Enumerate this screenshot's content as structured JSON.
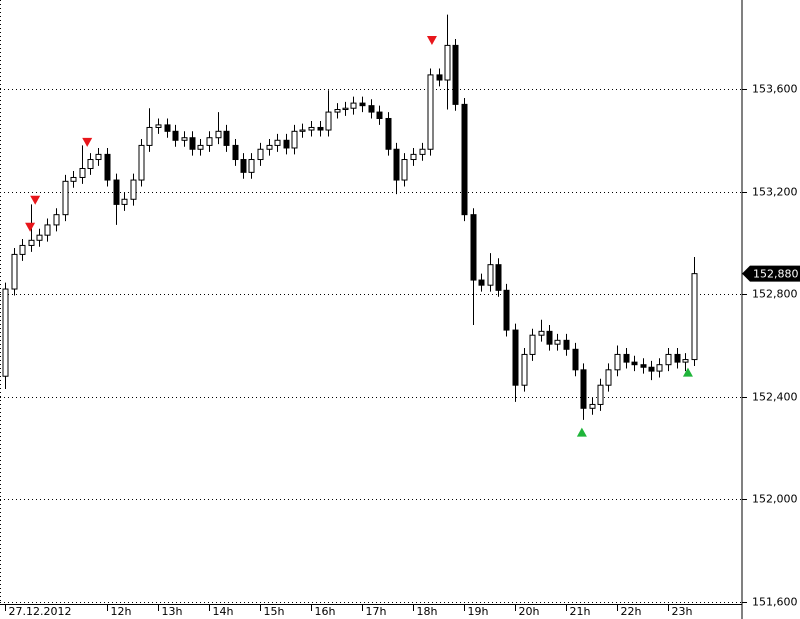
{
  "chart_data": {
    "type": "candlestick",
    "x": [
      10,
      10.17,
      10.33,
      10.5,
      10.67,
      10.83,
      11,
      11.17,
      11.33,
      11.5,
      11.67,
      11.83,
      12,
      12.17,
      12.33,
      12.5,
      12.67,
      12.83,
      13,
      13.17,
      13.33,
      13.5,
      13.67,
      13.83,
      14,
      14.17,
      14.33,
      14.5,
      14.67,
      14.83,
      15,
      15.17,
      15.33,
      15.5,
      15.67,
      15.83,
      16,
      16.17,
      16.33,
      16.5,
      16.67,
      16.83,
      17,
      17.17,
      17.33,
      17.5,
      17.67,
      17.83,
      18,
      18.17,
      18.33,
      18.5,
      18.67,
      18.83,
      19,
      19.17,
      19.33,
      19.5,
      19.67,
      19.83,
      20,
      20.17,
      20.33,
      20.5,
      20.67,
      20.83,
      21,
      21.17,
      21.33,
      21.5,
      21.67,
      21.83,
      22,
      22.17,
      22.33,
      22.5,
      22.67,
      22.83,
      23,
      23.17,
      23.33,
      23.5
    ],
    "open": [
      152480,
      152820,
      152955,
      152990,
      153010,
      153030,
      153070,
      153110,
      153240,
      153255,
      153290,
      153325,
      153345,
      153245,
      153150,
      153170,
      153245,
      153380,
      153450,
      153460,
      153435,
      153400,
      153410,
      153365,
      153380,
      153410,
      153435,
      153380,
      153325,
      153275,
      153325,
      153365,
      153380,
      153400,
      153370,
      153435,
      153440,
      153450,
      153440,
      153510,
      153520,
      153525,
      153545,
      153535,
      153510,
      153485,
      153365,
      153245,
      153325,
      153345,
      153365,
      153655,
      153635,
      153770,
      153540,
      153110,
      152855,
      152835,
      152915,
      152815,
      152660,
      152445,
      152565,
      152640,
      152655,
      152605,
      152620,
      152585,
      152505,
      152355,
      152370,
      152445,
      152505,
      152565,
      152535,
      152525,
      152515,
      152500,
      152525,
      152565,
      152535,
      152545
    ],
    "high": [
      152845,
      152980,
      153015,
      153150,
      153055,
      153095,
      153135,
      153265,
      153280,
      153380,
      153350,
      153370,
      153370,
      153270,
      153195,
      153270,
      153405,
      153525,
      153485,
      153485,
      153460,
      153435,
      153435,
      153405,
      153435,
      153510,
      153460,
      153405,
      153350,
      153350,
      153390,
      153405,
      153425,
      153425,
      153460,
      153465,
      153475,
      153475,
      153595,
      153545,
      153550,
      153570,
      153570,
      153560,
      153535,
      153510,
      153390,
      153350,
      153370,
      153390,
      153680,
      153680,
      153890,
      153795,
      153565,
      153135,
      152880,
      152960,
      152940,
      152840,
      152685,
      152590,
      152665,
      152700,
      152680,
      152645,
      152645,
      152610,
      152530,
      152395,
      152470,
      152530,
      152600,
      152590,
      152560,
      152550,
      152540,
      152550,
      152590,
      152590,
      152570,
      152945
    ],
    "low": [
      152430,
      152795,
      152930,
      152965,
      152985,
      153005,
      153045,
      153085,
      153215,
      153230,
      153265,
      153300,
      153220,
      153070,
      153125,
      153145,
      153220,
      153355,
      153425,
      153410,
      153375,
      153375,
      153340,
      153340,
      153355,
      153385,
      153355,
      153300,
      153250,
      153250,
      153300,
      153340,
      153355,
      153345,
      153345,
      153410,
      153415,
      153415,
      153415,
      153485,
      153495,
      153500,
      153510,
      153485,
      153460,
      153340,
      153190,
      153220,
      153300,
      153320,
      153340,
      153610,
      153520,
      153515,
      153085,
      152680,
      152810,
      152810,
      152790,
      152635,
      152380,
      152420,
      152540,
      152615,
      152580,
      152580,
      152560,
      152480,
      152310,
      152330,
      152345,
      152420,
      152480,
      152510,
      152500,
      152490,
      152465,
      152475,
      152500,
      152510,
      152500,
      152520
    ],
    "close": [
      152820,
      152955,
      152990,
      153010,
      153030,
      153070,
      153110,
      153240,
      153255,
      153290,
      153325,
      153345,
      153245,
      153150,
      153170,
      153245,
      153380,
      153450,
      153460,
      153435,
      153400,
      153410,
      153365,
      153380,
      153410,
      153435,
      153380,
      153325,
      153275,
      153325,
      153365,
      153380,
      153400,
      153370,
      153435,
      153440,
      153450,
      153440,
      153510,
      153520,
      153525,
      153545,
      153535,
      153510,
      153485,
      153365,
      153245,
      153325,
      153345,
      153365,
      153655,
      153635,
      153770,
      153540,
      153110,
      152855,
      152835,
      152915,
      152815,
      152660,
      152445,
      152565,
      152640,
      152655,
      152605,
      152620,
      152585,
      152505,
      152355,
      152370,
      152445,
      152505,
      152565,
      152535,
      152525,
      152515,
      152500,
      152525,
      152565,
      152535,
      152545,
      152880
    ],
    "sell_signals": {
      "color": "#e8161b",
      "x": [
        10.49,
        10.59,
        11.61,
        18.37
      ],
      "values": [
        153063,
        153168,
        153394,
        153791
      ]
    },
    "buy_signals": {
      "color": "#1fb53a",
      "x": [
        21.31,
        23.39
      ],
      "values": [
        152260,
        152494
      ]
    },
    "last_price": {
      "value": 152880,
      "label": "152,880"
    },
    "xlim": [
      9.9,
      24.45
    ],
    "xticks": [
      {
        "value": 10,
        "label": "27.12.2012"
      },
      {
        "value": 12,
        "label": "12h"
      },
      {
        "value": 13,
        "label": "13h"
      },
      {
        "value": 14,
        "label": "14h"
      },
      {
        "value": 15,
        "label": "15h"
      },
      {
        "value": 16,
        "label": "16h"
      },
      {
        "value": 17,
        "label": "17h"
      },
      {
        "value": 18,
        "label": "18h"
      },
      {
        "value": 19,
        "label": "19h"
      },
      {
        "value": 20,
        "label": "20h"
      },
      {
        "value": 21,
        "label": "21h"
      },
      {
        "value": 22,
        "label": "22h"
      },
      {
        "value": 23,
        "label": "23h"
      }
    ],
    "ylim": [
      151588,
      153947
    ],
    "yticks": [
      {
        "value": 151600,
        "label": "151,600"
      },
      {
        "value": 152000,
        "label": "152,000"
      },
      {
        "value": 152400,
        "label": "152,400"
      },
      {
        "value": 152800,
        "label": "152,800"
      },
      {
        "value": 153200,
        "label": "153,200"
      },
      {
        "value": 153600,
        "label": "153,600"
      }
    ],
    "grid": true
  }
}
